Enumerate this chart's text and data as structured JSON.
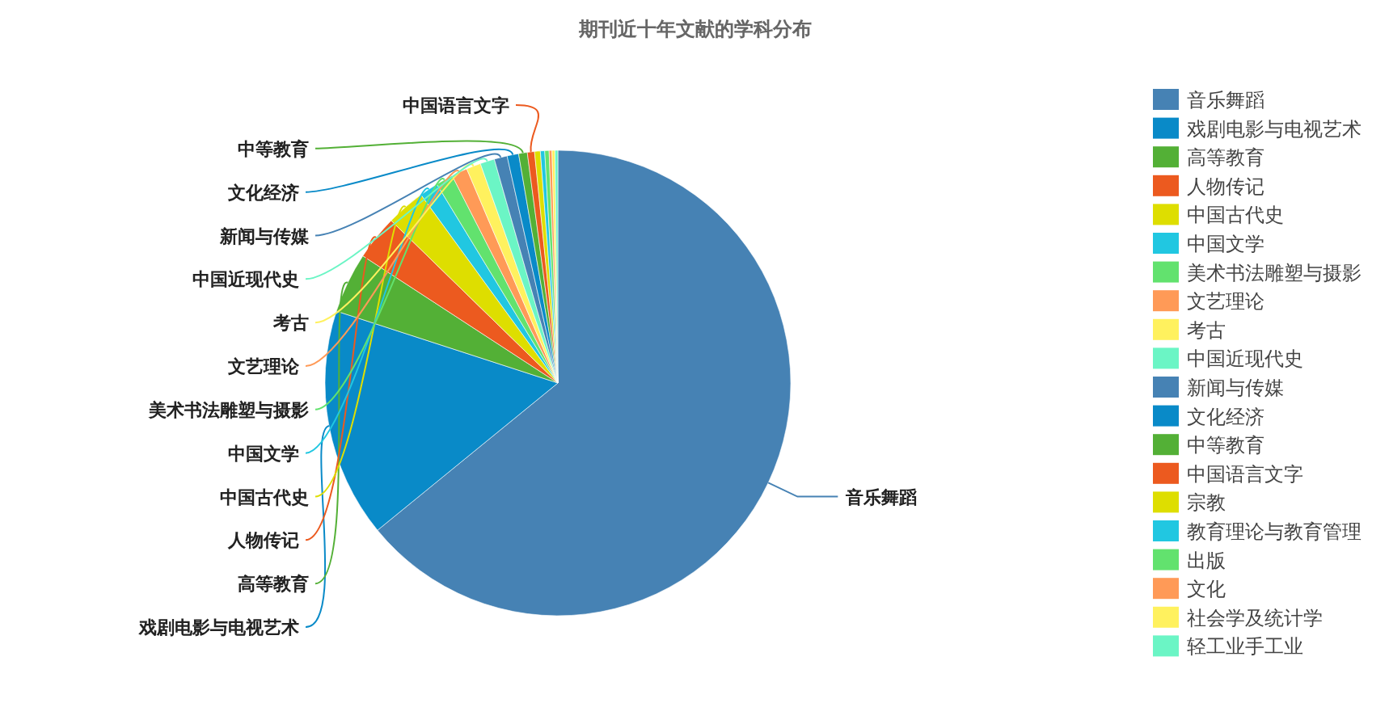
{
  "chart_data": {
    "type": "pie",
    "title": "期刊近十年文献的学科分布",
    "legend": "right",
    "categories": [
      "音乐舞蹈",
      "戏剧电影与电视艺术",
      "高等教育",
      "人物传记",
      "中国古代史",
      "中国文学",
      "美术书法雕塑与摄影",
      "文艺理论",
      "考古",
      "中国近现代史",
      "新闻与传媒",
      "文化经济",
      "中等教育",
      "中国语言文字",
      "宗教",
      "教育理论与教育管理",
      "出版",
      "文化",
      "社会学及统计学",
      "轻工业手工业"
    ],
    "values": [
      64.1,
      15.9,
      4.2,
      3.1,
      2.7,
      1.3,
      1.2,
      1.1,
      1.0,
      1.0,
      0.9,
      0.8,
      0.6,
      0.5,
      0.4,
      0.3,
      0.3,
      0.2,
      0.2,
      0.2
    ],
    "colors": [
      "#4682b4",
      "#098ac8",
      "#53b036",
      "#ec5a1f",
      "#dede00",
      "#21c7e1",
      "#62e26e",
      "#ff9a57",
      "#fff15e",
      "#6bf5c5",
      "#4682b4",
      "#098ac8",
      "#53b036",
      "#ec5a1f",
      "#dede00",
      "#21c7e1",
      "#62e26e",
      "#ff9a57",
      "#fff15e",
      "#6bf5c5"
    ]
  }
}
